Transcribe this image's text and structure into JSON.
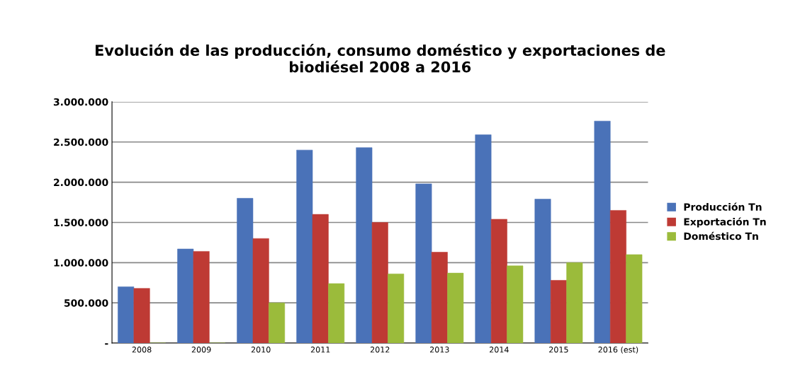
{
  "chart_data": {
    "type": "bar",
    "title": "Evolución de las producción, consumo doméstico y exportaciones de\nbiodiésel 2008 a 2016",
    "categories": [
      "2008",
      "2009",
      "2010",
      "2011",
      "2012",
      "2013",
      "2014",
      "2015",
      "2016 (est)"
    ],
    "series": [
      {
        "name": "Producción Tn",
        "color": "#4a72b8",
        "values": [
          700000,
          1170000,
          1800000,
          2400000,
          2430000,
          1980000,
          2590000,
          1790000,
          2760000
        ]
      },
      {
        "name": "Exportación Tn",
        "color": "#be3a34",
        "values": [
          680000,
          1140000,
          1300000,
          1600000,
          1500000,
          1130000,
          1540000,
          780000,
          1650000
        ]
      },
      {
        "name": "Doméstico Tn",
        "color": "#9bbb3b",
        "values": [
          0,
          0,
          500000,
          740000,
          860000,
          870000,
          960000,
          1000000,
          1100000
        ]
      }
    ],
    "ylim": [
      0,
      3000000
    ],
    "yticks": [
      {
        "value": 0,
        "label": "-"
      },
      {
        "value": 500000,
        "label": "500.000"
      },
      {
        "value": 1000000,
        "label": "1.000.000"
      },
      {
        "value": 1500000,
        "label": "1.500.000"
      },
      {
        "value": 2000000,
        "label": "2.000.000"
      },
      {
        "value": 2500000,
        "label": "2.500.000"
      },
      {
        "value": 3000000,
        "label": "3.000.000"
      }
    ],
    "grid": "y",
    "legend": "right"
  }
}
